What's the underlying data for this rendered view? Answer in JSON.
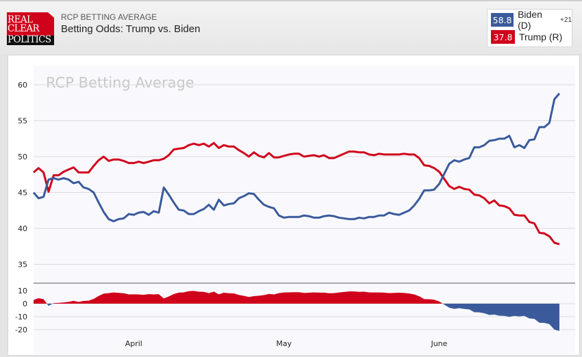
{
  "header": {
    "logo": {
      "line1": "REAL",
      "line2": "CLEAR",
      "line3": "POLITICS"
    },
    "kicker": "RCP BETTING AVERAGE",
    "title": "Betting Odds: Trump vs. Biden"
  },
  "legend": {
    "items": [
      {
        "value": "58.8",
        "name": "Biden (D)",
        "spread": "+21",
        "color": "#3a5a9b"
      },
      {
        "value": "37.8",
        "name": "Trump (R)",
        "spread": "",
        "color": "#d0021b"
      }
    ]
  },
  "chart_data": {
    "type": "line",
    "title": "RCP Betting Average",
    "watermark": "RCP Betting Average",
    "xlabel": "",
    "ylabel": "",
    "ylim": [
      32,
      64
    ],
    "yticks": [
      35,
      40,
      45,
      50,
      55,
      60
    ],
    "grid": true,
    "x_tick_labels": [
      {
        "label": "April",
        "index": 20
      },
      {
        "label": "May",
        "index": 50
      },
      {
        "label": "June",
        "index": 81
      }
    ],
    "series": [
      {
        "name": "Biden (D)",
        "color": "#3a5a9b",
        "values": [
          45.0,
          44.2,
          44.4,
          46.8,
          47.0,
          46.8,
          47.0,
          46.8,
          46.3,
          46.5,
          45.7,
          45.5,
          45.0,
          43.6,
          42.3,
          41.3,
          41.0,
          41.3,
          41.4,
          42.0,
          41.9,
          42.2,
          42.3,
          41.9,
          42.4,
          42.2,
          45.7,
          44.7,
          43.6,
          42.6,
          42.5,
          42.0,
          42.0,
          42.4,
          42.7,
          43.3,
          42.6,
          44.0,
          43.2,
          43.4,
          43.5,
          44.2,
          44.5,
          44.9,
          44.8,
          44.0,
          43.3,
          43.0,
          42.8,
          41.8,
          41.5,
          41.6,
          41.6,
          41.6,
          41.8,
          41.7,
          41.5,
          41.5,
          41.7,
          41.8,
          41.7,
          41.5,
          41.4,
          41.3,
          41.3,
          41.5,
          41.4,
          41.6,
          41.6,
          41.8,
          41.8,
          42.2,
          42.0,
          41.9,
          42.2,
          42.5,
          43.2,
          44.1,
          45.3,
          45.3,
          45.4,
          46.2,
          47.6,
          49.0,
          49.5,
          49.3,
          49.6,
          49.8,
          51.3,
          51.3,
          51.6,
          52.2,
          52.3,
          52.5,
          52.5,
          52.9,
          51.3,
          51.6,
          51.2,
          52.3,
          52.4,
          54.1,
          54.1,
          54.7,
          58.0,
          58.8
        ]
      },
      {
        "name": "Trump (R)",
        "color": "#d0021b",
        "values": [
          47.8,
          48.4,
          47.8,
          45.1,
          47.4,
          47.4,
          47.9,
          48.2,
          48.5,
          47.8,
          47.8,
          47.8,
          48.7,
          49.5,
          50.0,
          49.4,
          49.6,
          49.6,
          49.4,
          49.1,
          49.1,
          49.3,
          49.1,
          49.3,
          49.5,
          49.5,
          49.7,
          50.2,
          51.0,
          51.1,
          51.2,
          51.6,
          51.8,
          51.6,
          51.8,
          51.4,
          51.9,
          51.2,
          51.6,
          51.4,
          51.4,
          50.9,
          50.5,
          50.0,
          50.6,
          50.1,
          49.9,
          50.5,
          49.9,
          49.9,
          50.1,
          50.3,
          50.4,
          50.4,
          50.0,
          50.1,
          50.2,
          50.0,
          50.2,
          49.8,
          49.8,
          50.1,
          50.4,
          50.7,
          50.7,
          50.6,
          50.6,
          50.3,
          50.2,
          50.4,
          50.3,
          50.3,
          50.3,
          50.3,
          50.4,
          50.3,
          50.3,
          49.8,
          48.8,
          48.7,
          48.4,
          47.9,
          46.9,
          45.9,
          45.5,
          45.8,
          45.5,
          45.4,
          44.7,
          44.6,
          44.2,
          43.5,
          43.9,
          43.2,
          43.1,
          42.8,
          41.9,
          41.8,
          41.8,
          40.9,
          40.7,
          39.4,
          39.3,
          38.9,
          38.0,
          37.8
        ]
      }
    ],
    "spread_chart": {
      "type": "area",
      "description": "Trump (R) minus Biden (D)",
      "ylim": [
        -24,
        17
      ],
      "yticks": [
        10,
        0,
        -10,
        -20
      ],
      "positive_color": "#d0021b",
      "negative_color": "#3a5a9b"
    }
  }
}
